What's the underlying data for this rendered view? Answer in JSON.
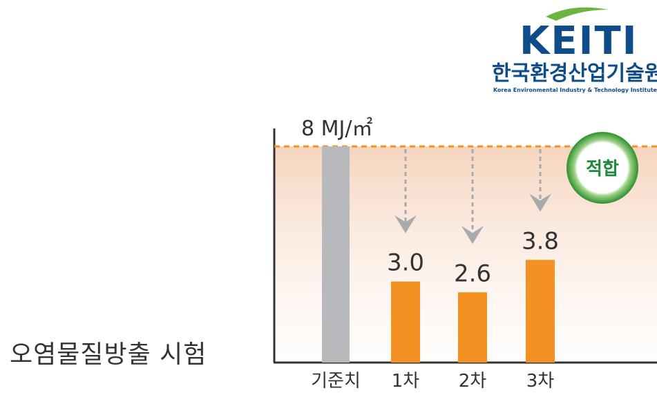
{
  "logo": {
    "word": "KEITI",
    "korean": "한국환경산업기술원",
    "english": "Korea Environmental Industry & Technology Institute",
    "colors": {
      "word": "#0f4c8a",
      "leaf": "#6db33f"
    }
  },
  "test_label": "오염물질방출 시험",
  "badge": {
    "label": "적합",
    "ring": "#3fa535",
    "text": "#1e8a3a"
  },
  "chart_data": {
    "type": "bar",
    "categories": [
      "기준치",
      "1차",
      "2차",
      "3차"
    ],
    "values": [
      8,
      3.0,
      2.6,
      3.8
    ],
    "value_labels": [
      "8 MJ/㎡",
      "3.0",
      "2.6",
      "3.8"
    ],
    "threshold": 8,
    "ylim": [
      0,
      8
    ],
    "colors": {
      "reference": "#b8b9bd",
      "bars": "#f39122",
      "threshold_line": "#f39122",
      "band_top": "#f3c6a8",
      "arrow": "#a8a9ad"
    }
  }
}
